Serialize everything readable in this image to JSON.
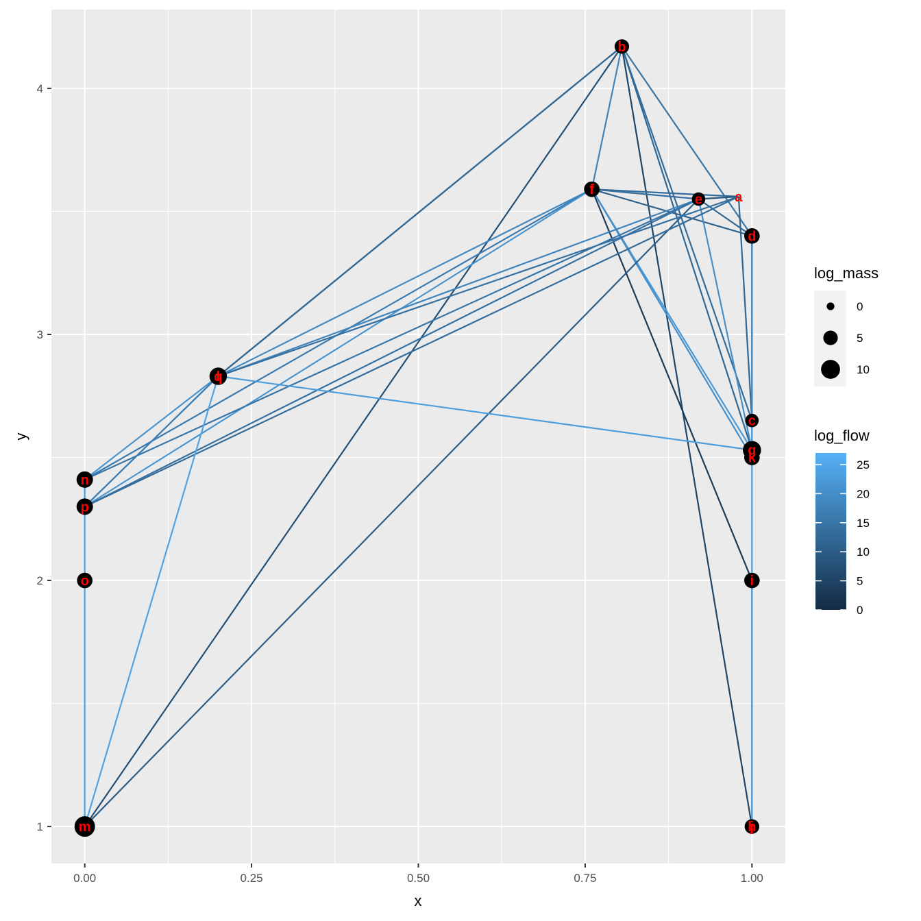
{
  "chart_data": {
    "type": "network",
    "xlabel": "x",
    "ylabel": "y",
    "xlim": [
      -0.05,
      1.05
    ],
    "ylim": [
      0.85,
      4.32
    ],
    "xticks": [
      {
        "value": 0,
        "label": "0.00"
      },
      {
        "value": 0.25,
        "label": "0.25"
      },
      {
        "value": 0.5,
        "label": "0.50"
      },
      {
        "value": 0.75,
        "label": "0.75"
      },
      {
        "value": 1,
        "label": "1.00"
      }
    ],
    "yticks": [
      {
        "value": 1,
        "label": "1"
      },
      {
        "value": 2,
        "label": "2"
      },
      {
        "value": 3,
        "label": "3"
      },
      {
        "value": 4,
        "label": "4"
      }
    ],
    "grid": true,
    "colors": {
      "panel": "#ebebeb",
      "grid": "#ffffff",
      "node": "#000000",
      "node_label": "#ff0000",
      "flow_low": "#132b43",
      "flow_high": "#56b1f7"
    },
    "nodes": [
      {
        "label": "a",
        "x": 0.98,
        "y": 3.56,
        "log_mass": -1
      },
      {
        "label": "b",
        "x": 0.805,
        "y": 4.17,
        "log_mass": 5
      },
      {
        "label": "c",
        "x": 1.0,
        "y": 2.65,
        "log_mass": 4
      },
      {
        "label": "d",
        "x": 1.0,
        "y": 3.4,
        "log_mass": 6
      },
      {
        "label": "e",
        "x": 0.92,
        "y": 3.55,
        "log_mass": 4
      },
      {
        "label": "f",
        "x": 0.76,
        "y": 3.59,
        "log_mass": 6
      },
      {
        "label": "g",
        "x": 1.0,
        "y": 2.53,
        "log_mass": 9
      },
      {
        "label": "h",
        "x": 1.0,
        "y": 1.0,
        "log_mass": 5
      },
      {
        "label": "i",
        "x": 1.0,
        "y": 2.0,
        "log_mass": 6
      },
      {
        "label": "j",
        "x": 1.0,
        "y": 1.0,
        "log_mass": 5
      },
      {
        "label": "k",
        "x": 1.0,
        "y": 2.5,
        "log_mass": 6
      },
      {
        "label": "l",
        "x": 0.2,
        "y": 2.83,
        "log_mass": 8
      },
      {
        "label": "m",
        "x": 0.0,
        "y": 1.0,
        "log_mass": 12
      },
      {
        "label": "n",
        "x": 0.0,
        "y": 2.41,
        "log_mass": 7
      },
      {
        "label": "o",
        "x": 0.0,
        "y": 2.0,
        "log_mass": 6
      },
      {
        "label": "p",
        "x": 0.0,
        "y": 2.3,
        "log_mass": 7
      },
      {
        "label": "q",
        "x": 0.2,
        "y": 2.83,
        "log_mass": 8
      }
    ],
    "edges": [
      {
        "from": "b",
        "to": "l",
        "log_flow": 10
      },
      {
        "from": "b",
        "to": "q",
        "log_flow": 12
      },
      {
        "from": "b",
        "to": "m",
        "log_flow": 7
      },
      {
        "from": "b",
        "to": "f",
        "log_flow": 18
      },
      {
        "from": "b",
        "to": "d",
        "log_flow": 15
      },
      {
        "from": "b",
        "to": "g",
        "log_flow": 12
      },
      {
        "from": "b",
        "to": "c",
        "log_flow": 13
      },
      {
        "from": "b",
        "to": "j",
        "log_flow": 5
      },
      {
        "from": "f",
        "to": "e",
        "log_flow": 14
      },
      {
        "from": "f",
        "to": "a",
        "log_flow": 13
      },
      {
        "from": "f",
        "to": "d",
        "log_flow": 11
      },
      {
        "from": "f",
        "to": "i",
        "log_flow": 3
      },
      {
        "from": "f",
        "to": "g",
        "log_flow": 22
      },
      {
        "from": "f",
        "to": "k",
        "log_flow": 20
      },
      {
        "from": "f",
        "to": "l",
        "log_flow": 19
      },
      {
        "from": "f",
        "to": "n",
        "log_flow": 16
      },
      {
        "from": "f",
        "to": "p",
        "log_flow": 21
      },
      {
        "from": "e",
        "to": "a",
        "log_flow": 9
      },
      {
        "from": "e",
        "to": "d",
        "log_flow": 12
      },
      {
        "from": "e",
        "to": "g",
        "log_flow": 20
      },
      {
        "from": "e",
        "to": "q",
        "log_flow": 18
      },
      {
        "from": "e",
        "to": "n",
        "log_flow": 15
      },
      {
        "from": "e",
        "to": "p",
        "log_flow": 14
      },
      {
        "from": "e",
        "to": "m",
        "log_flow": 10
      },
      {
        "from": "a",
        "to": "c",
        "log_flow": 12
      },
      {
        "from": "a",
        "to": "l",
        "log_flow": 14
      },
      {
        "from": "a",
        "to": "p",
        "log_flow": 13
      },
      {
        "from": "d",
        "to": "g",
        "log_flow": 21
      },
      {
        "from": "d",
        "to": "c",
        "log_flow": 18
      },
      {
        "from": "c",
        "to": "g",
        "log_flow": 23
      },
      {
        "from": "g",
        "to": "k",
        "log_flow": 24
      },
      {
        "from": "g",
        "to": "q",
        "log_flow": 23
      },
      {
        "from": "k",
        "to": "i",
        "log_flow": 23
      },
      {
        "from": "i",
        "to": "j",
        "log_flow": 23
      },
      {
        "from": "i",
        "to": "h",
        "log_flow": 22
      },
      {
        "from": "l",
        "to": "n",
        "log_flow": 21
      },
      {
        "from": "l",
        "to": "p",
        "log_flow": 20
      },
      {
        "from": "l",
        "to": "m",
        "log_flow": 24
      },
      {
        "from": "q",
        "to": "p",
        "log_flow": 17
      },
      {
        "from": "n",
        "to": "p",
        "log_flow": 23
      },
      {
        "from": "p",
        "to": "o",
        "log_flow": 24
      },
      {
        "from": "o",
        "to": "m",
        "log_flow": 24
      }
    ],
    "legend_mass": {
      "title": "log_mass",
      "entries": [
        {
          "value": 0,
          "label": "0"
        },
        {
          "value": 5,
          "label": "5"
        },
        {
          "value": 10,
          "label": "10"
        }
      ]
    },
    "legend_flow": {
      "title": "log_flow",
      "min": 0,
      "max": 27,
      "ticks": [
        {
          "value": 0,
          "label": "0"
        },
        {
          "value": 5,
          "label": "5"
        },
        {
          "value": 10,
          "label": "10"
        },
        {
          "value": 15,
          "label": "15"
        },
        {
          "value": 20,
          "label": "20"
        },
        {
          "value": 25,
          "label": "25"
        }
      ]
    },
    "legend_placement": "right"
  }
}
